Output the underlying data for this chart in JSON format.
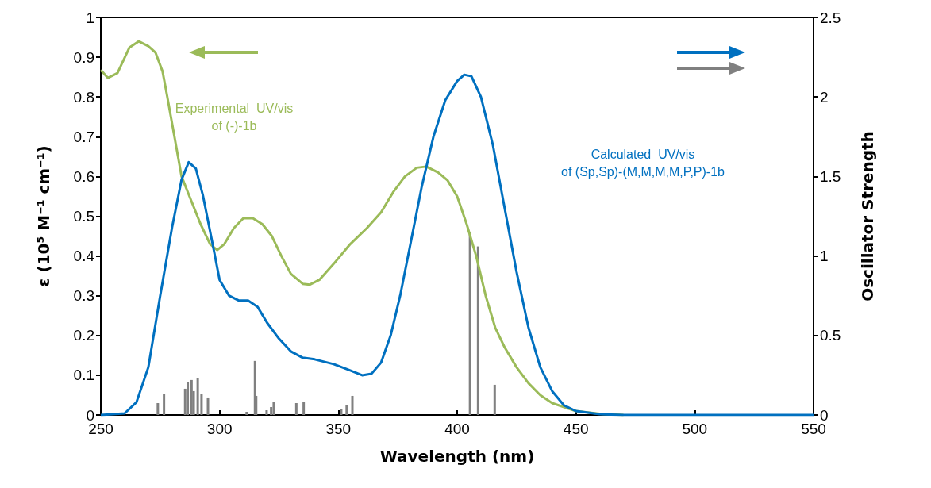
{
  "chart_data": {
    "type": "line",
    "xlabel": "Wavelength (nm)",
    "ylabel": "ε (10⁵ M⁻¹ cm⁻¹)",
    "y2label": "Oscillator Strength",
    "xlim": [
      250,
      550
    ],
    "xticks": [
      250,
      300,
      350,
      400,
      450,
      500,
      550
    ],
    "ylim": [
      0,
      1
    ],
    "yticks": [
      0,
      0.1,
      0.2,
      0.3,
      0.4,
      0.5,
      0.6,
      0.7,
      0.8,
      0.9,
      1
    ],
    "y2lim": [
      0,
      2.5
    ],
    "y2ticks": [
      0,
      0.5,
      1,
      1.5,
      2,
      2.5
    ],
    "grid": false,
    "marker": "none",
    "annotations": [
      "Experimental UV/vis of (-)-1b",
      "Calculated UV/vis of (Sp,Sp)-(M,M,M,M,P,P)-1b"
    ],
    "series": [
      {
        "color": "#9bbb59",
        "x": [
          250,
          253,
          257,
          262,
          266,
          270,
          273,
          276,
          278,
          281,
          284,
          288,
          292,
          296,
          299,
          302,
          306,
          310,
          314,
          318,
          322,
          326,
          330,
          335,
          338,
          342,
          348,
          355,
          362,
          368,
          373,
          378,
          383,
          387,
          392,
          396,
          400,
          404,
          408,
          412,
          416,
          420,
          425,
          430,
          435,
          440,
          450,
          460,
          470
        ],
        "values": [
          0.868,
          0.848,
          0.86,
          0.924,
          0.94,
          0.928,
          0.912,
          0.864,
          0.8,
          0.7,
          0.6,
          0.54,
          0.48,
          0.43,
          0.415,
          0.43,
          0.47,
          0.495,
          0.495,
          0.48,
          0.45,
          0.4,
          0.355,
          0.33,
          0.328,
          0.34,
          0.38,
          0.43,
          0.47,
          0.51,
          0.56,
          0.6,
          0.622,
          0.625,
          0.61,
          0.59,
          0.55,
          0.48,
          0.4,
          0.3,
          0.22,
          0.17,
          0.12,
          0.08,
          0.05,
          0.03,
          0.01,
          0.003,
          0
        ]
      },
      {
        "axis": "y2",
        "color": "#0070c0",
        "x": [
          250,
          260,
          265,
          270,
          275,
          280,
          284,
          287,
          290,
          293,
          297,
          300,
          304,
          308,
          312,
          316,
          320,
          325,
          330,
          335,
          340,
          348,
          355,
          360,
          364,
          368,
          372,
          376,
          380,
          385,
          390,
          395,
          400,
          403,
          406,
          410,
          415,
          420,
          425,
          430,
          435,
          440,
          445,
          450,
          460,
          470,
          550
        ],
        "values": [
          0,
          0.01,
          0.08,
          0.3,
          0.75,
          1.18,
          1.48,
          1.59,
          1.55,
          1.38,
          1.08,
          0.85,
          0.75,
          0.72,
          0.72,
          0.68,
          0.58,
          0.48,
          0.4,
          0.36,
          0.35,
          0.32,
          0.28,
          0.25,
          0.26,
          0.33,
          0.5,
          0.75,
          1.05,
          1.43,
          1.75,
          1.98,
          2.1,
          2.14,
          2.13,
          2,
          1.7,
          1.3,
          0.9,
          0.55,
          0.3,
          0.15,
          0.06,
          0.025,
          0.005,
          0,
          0
        ]
      },
      {
        "type": "bar",
        "axis": "y2",
        "color": "#808080",
        "x": [
          274,
          276.6,
          285.5,
          286.6,
          288.2,
          289.1,
          290.8,
          292.4,
          295.1,
          311.4,
          314.9,
          315.4,
          319.8,
          321.7,
          322.8,
          332.3,
          335.4,
          351.2,
          353.5,
          355.9,
          405.4,
          408.8,
          415.8
        ],
        "values": [
          0.075,
          0.13,
          0.165,
          0.205,
          0.22,
          0.15,
          0.23,
          0.13,
          0.11,
          0.02,
          0.34,
          0.12,
          0.03,
          0.05,
          0.08,
          0.075,
          0.08,
          0.04,
          0.06,
          0.12,
          1.15,
          1.06,
          0.19
        ]
      }
    ]
  }
}
